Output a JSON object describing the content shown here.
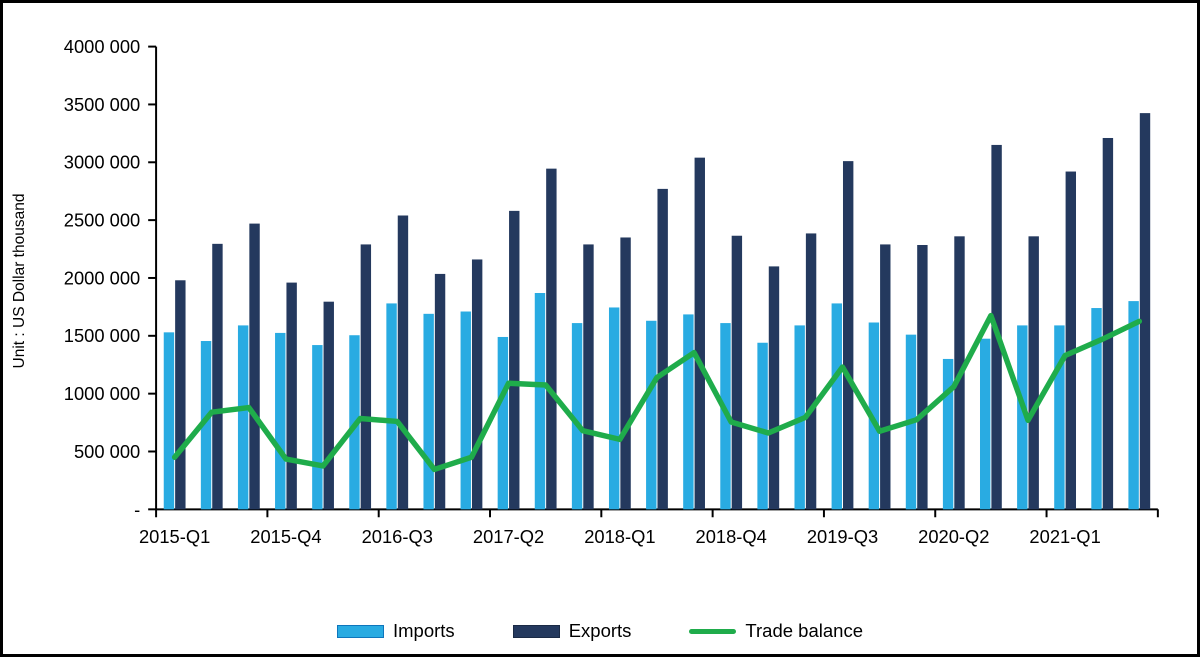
{
  "chart_data": {
    "type": "bar+line",
    "title": "",
    "ylabel": "Unit : US Dollar thousand",
    "ylim": [
      0,
      4000000
    ],
    "ytick_step": 500000,
    "zero_tick_label": "-",
    "grid": false,
    "legend_position": "bottom",
    "xtick_every": 3,
    "xtick_labels": [
      "2015-Q1",
      "2015-Q4",
      "2016-Q3",
      "2017-Q2",
      "2018-Q1",
      "2018-Q4",
      "2019-Q3",
      "2020-Q2",
      "2021-Q1"
    ],
    "categories": [
      "2015-Q1",
      "2015-Q2",
      "2015-Q3",
      "2015-Q4",
      "2016-Q1",
      "2016-Q2",
      "2016-Q3",
      "2016-Q4",
      "2017-Q1",
      "2017-Q2",
      "2017-Q3",
      "2017-Q4",
      "2018-Q1",
      "2018-Q2",
      "2018-Q3",
      "2018-Q4",
      "2019-Q1",
      "2019-Q2",
      "2019-Q3",
      "2019-Q4",
      "2020-Q1",
      "2020-Q2",
      "2020-Q3",
      "2020-Q4",
      "2021-Q1",
      "2021-Q2",
      "2021-Q3"
    ],
    "series": [
      {
        "name": "Imports",
        "type": "bar",
        "color": "#29ABE2",
        "values": [
          1530000,
          1455000,
          1590000,
          1525000,
          1420000,
          1505000,
          1780000,
          1690000,
          1710000,
          1490000,
          1870000,
          1610000,
          1745000,
          1630000,
          1685000,
          1610000,
          1440000,
          1590000,
          1780000,
          1615000,
          1510000,
          1300000,
          1475000,
          1590000,
          1590000,
          1740000,
          1800000
        ]
      },
      {
        "name": "Exports",
        "type": "bar",
        "color": "#24395E",
        "values": [
          1980000,
          2295000,
          2470000,
          1960000,
          1795000,
          2290000,
          2540000,
          2035000,
          2160000,
          2580000,
          2945000,
          2290000,
          2350000,
          2770000,
          3040000,
          2365000,
          2100000,
          2385000,
          3010000,
          2290000,
          2285000,
          2360000,
          3150000,
          2360000,
          2920000,
          3210000,
          3425000
        ]
      },
      {
        "name": "Trade balance",
        "type": "line",
        "color": "#1FAC4B",
        "values": [
          450000,
          840000,
          880000,
          435000,
          375000,
          785000,
          760000,
          345000,
          450000,
          1090000,
          1075000,
          680000,
          605000,
          1140000,
          1355000,
          755000,
          660000,
          795000,
          1230000,
          675000,
          775000,
          1060000,
          1675000,
          770000,
          1330000,
          1470000,
          1625000
        ]
      }
    ]
  },
  "legend": {
    "imports_label": "Imports",
    "exports_label": "Exports",
    "balance_label": "Trade balance"
  },
  "colors": {
    "imports": "#29ABE2",
    "exports": "#24395E",
    "trade_balance": "#1FAC4B",
    "axis": "#000000"
  }
}
